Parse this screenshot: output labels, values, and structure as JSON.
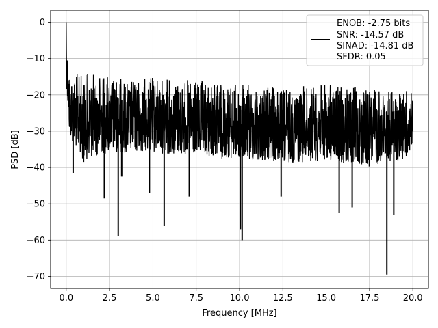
{
  "chart_data": {
    "type": "line",
    "title": "",
    "xlabel": "Frequency [MHz]",
    "ylabel": "PSD [dB]",
    "xlim": [
      -0.9,
      20.9
    ],
    "ylim": [
      -73.3,
      3.3
    ],
    "xticks": [
      0.0,
      2.5,
      5.0,
      7.5,
      10.0,
      12.5,
      15.0,
      17.5,
      20.0
    ],
    "xtick_labels": [
      "0.0",
      "2.5",
      "5.0",
      "7.5",
      "10.0",
      "12.5",
      "15.0",
      "17.5",
      "20.0"
    ],
    "yticks": [
      0,
      -10,
      -20,
      -30,
      -40,
      -50,
      -60,
      -70
    ],
    "ytick_labels": [
      "0",
      "−10",
      "−20",
      "−30",
      "−40",
      "−50",
      "−60",
      "−70"
    ],
    "grid": true,
    "legend_position": "top-right",
    "series": [
      {
        "color": "#000000",
        "trace_x_range": [
          0.0,
          20.0
        ],
        "trace_points": 2000,
        "noise_floor_upper_db": [
          [
            0.0,
            0.0
          ],
          [
            0.1,
            -12
          ],
          [
            0.5,
            -14
          ],
          [
            2.5,
            -14
          ],
          [
            3.5,
            -16
          ],
          [
            5.0,
            -15
          ],
          [
            7.5,
            -16
          ],
          [
            10.0,
            -17
          ],
          [
            12.5,
            -18
          ],
          [
            15.0,
            -17
          ],
          [
            17.5,
            -18
          ],
          [
            20.0,
            -19
          ]
        ],
        "noise_floor_lower_db": [
          [
            0.0,
            -16
          ],
          [
            0.2,
            -32
          ],
          [
            1.0,
            -38
          ],
          [
            2.5,
            -36
          ],
          [
            5.0,
            -36
          ],
          [
            7.5,
            -37
          ],
          [
            10.0,
            -38
          ],
          [
            12.5,
            -39
          ],
          [
            15.0,
            -38
          ],
          [
            17.5,
            -40
          ],
          [
            20.0,
            -37
          ]
        ],
        "deep_dips": [
          [
            0.4,
            -41.5
          ],
          [
            1.0,
            -38.5
          ],
          [
            2.2,
            -48.5
          ],
          [
            3.0,
            -59
          ],
          [
            3.2,
            -42.5
          ],
          [
            4.8,
            -47
          ],
          [
            5.65,
            -56
          ],
          [
            7.1,
            -48
          ],
          [
            10.05,
            -57
          ],
          [
            10.15,
            -60
          ],
          [
            12.4,
            -48
          ],
          [
            15.75,
            -52.5
          ],
          [
            16.5,
            -51
          ],
          [
            18.5,
            -69.5
          ],
          [
            18.9,
            -53
          ]
        ]
      }
    ],
    "legend_entries": [
      "ENOB: -2.75 bits",
      "SNR: -14.57 dB",
      "SINAD: -14.81 dB",
      "SFDR: 0.05"
    ]
  }
}
